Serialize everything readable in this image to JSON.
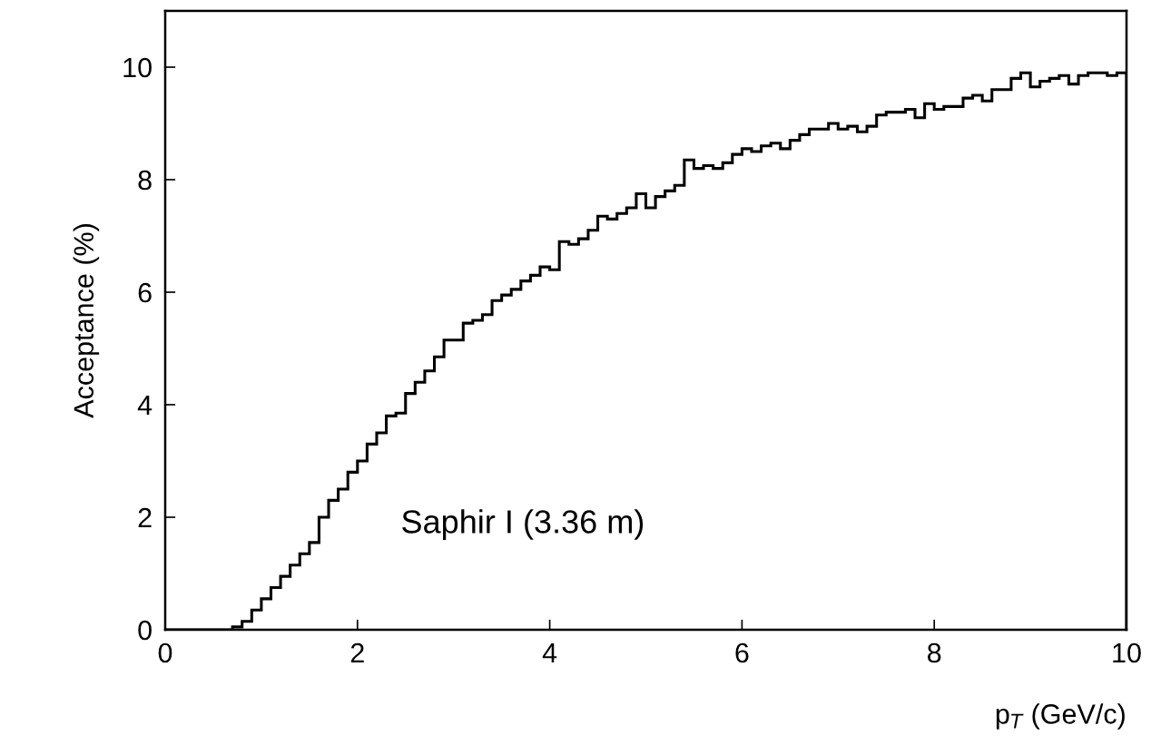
{
  "chart_data": {
    "type": "histogram",
    "xlabel": "p$_{T}$ (GeV/c)",
    "ylabel": "Acceptance (%)",
    "annotations": [
      "Saphir I (3.36 m)"
    ],
    "bins": [
      0.0,
      0.1,
      0.2,
      0.3,
      0.4,
      0.5,
      0.6,
      0.7,
      0.8,
      0.9,
      1.0,
      1.1,
      1.2,
      1.3,
      1.4,
      1.5,
      1.6,
      1.7,
      1.8,
      1.9,
      2.0,
      2.1,
      2.2,
      2.3,
      2.4,
      2.5,
      2.6,
      2.7,
      2.8,
      2.9,
      3.0,
      3.1,
      3.2,
      3.3,
      3.4,
      3.5,
      3.6,
      3.7,
      3.8,
      3.9,
      4.0,
      4.1,
      4.2,
      4.3,
      4.4,
      4.5,
      4.6,
      4.7,
      4.8,
      4.9,
      5.0,
      5.1,
      5.2,
      5.3,
      5.4,
      5.5,
      5.6,
      5.7,
      5.8,
      5.9,
      6.0,
      6.1,
      6.2,
      6.3,
      6.4,
      6.5,
      6.6,
      6.7,
      6.8,
      6.9,
      7.0,
      7.1,
      7.2,
      7.3,
      7.4,
      7.5,
      7.6,
      7.7,
      7.8,
      7.9,
      8.0,
      8.1,
      8.2,
      8.3,
      8.4,
      8.5,
      8.6,
      8.7,
      8.8,
      8.9,
      9.0,
      9.1,
      9.2,
      9.3,
      9.4,
      9.5,
      9.6,
      9.7,
      9.8,
      9.9,
      10.0
    ],
    "values": [
      0,
      0,
      0,
      0,
      0,
      0,
      0,
      0.05,
      0.15,
      0.35,
      0.55,
      0.75,
      0.95,
      1.15,
      1.35,
      1.55,
      2.0,
      2.3,
      2.5,
      2.8,
      3.0,
      3.3,
      3.5,
      3.8,
      3.85,
      4.2,
      4.4,
      4.6,
      4.85,
      5.15,
      5.15,
      5.45,
      5.5,
      5.6,
      5.85,
      5.95,
      6.05,
      6.2,
      6.3,
      6.45,
      6.4,
      6.9,
      6.85,
      6.95,
      7.1,
      7.35,
      7.3,
      7.4,
      7.5,
      7.75,
      7.5,
      7.7,
      7.8,
      7.9,
      8.35,
      8.2,
      8.25,
      8.2,
      8.3,
      8.45,
      8.55,
      8.5,
      8.6,
      8.65,
      8.55,
      8.7,
      8.8,
      8.9,
      8.9,
      9.0,
      8.9,
      8.95,
      8.85,
      8.95,
      9.15,
      9.2,
      9.2,
      9.25,
      9.1,
      9.35,
      9.25,
      9.3,
      9.3,
      9.45,
      9.5,
      9.4,
      9.6,
      9.6,
      9.8,
      9.9,
      9.65,
      9.75,
      9.8,
      9.85,
      9.7,
      9.85,
      9.9,
      9.9,
      9.85,
      9.9
    ],
    "color": "#000000",
    "xlim": [
      0,
      10
    ],
    "ylim": [
      0,
      11
    ],
    "xticks": [
      0,
      2,
      4,
      6,
      8,
      10
    ],
    "yticks": [
      0,
      2,
      4,
      6,
      8,
      10
    ],
    "grid": false
  }
}
